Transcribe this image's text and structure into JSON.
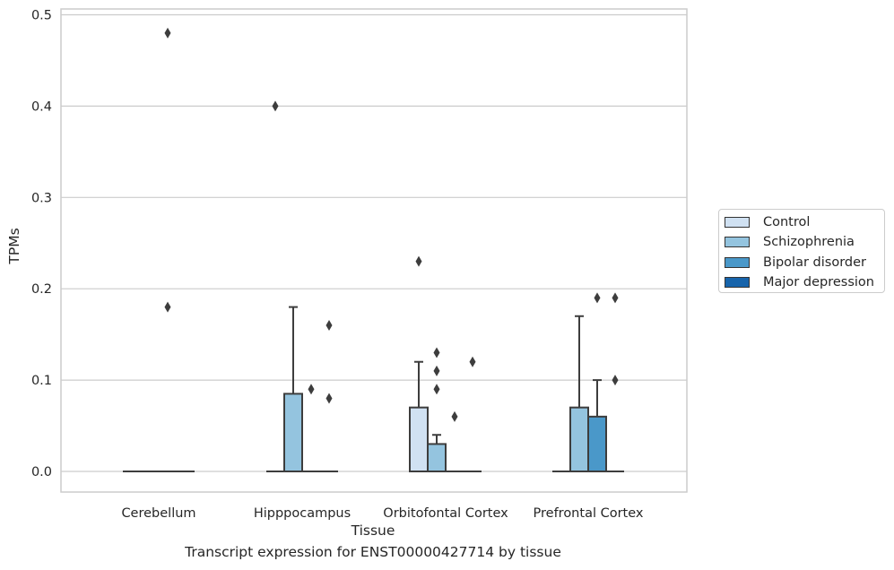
{
  "chart_data": {
    "type": "box",
    "title": "Transcript expression for ENST00000427714 by tissue",
    "xlabel": "Tissue",
    "ylabel": "TPMs",
    "ylim": [
      -0.023,
      0.505
    ],
    "yticks": [
      "0.0",
      "0.1",
      "0.2",
      "0.3",
      "0.4",
      "0.5"
    ],
    "categories": [
      "Cerebellum",
      "Hipppocampus",
      "Orbitofontal Cortex",
      "Prefrontal Cortex"
    ],
    "grid": true,
    "legend_position": "right",
    "series": [
      {
        "name": "Control",
        "color": "#d0e1f2",
        "boxes": [
          {
            "q1": 0,
            "median": 0,
            "q3": 0,
            "whisker_low": 0,
            "whisker_high": 0,
            "outliers": []
          },
          {
            "q1": 0,
            "median": 0,
            "q3": 0,
            "whisker_low": 0,
            "whisker_high": 0,
            "outliers": [
              0.4
            ]
          },
          {
            "q1": 0,
            "median": 0,
            "q3": 0.07,
            "whisker_low": 0,
            "whisker_high": 0.12,
            "outliers": [
              0.23
            ]
          },
          {
            "q1": 0,
            "median": 0,
            "q3": 0,
            "whisker_low": 0,
            "whisker_high": 0,
            "outliers": []
          }
        ]
      },
      {
        "name": "Schizophrenia",
        "color": "#94c4df",
        "boxes": [
          {
            "q1": 0,
            "median": 0,
            "q3": 0,
            "whisker_low": 0,
            "whisker_high": 0,
            "outliers": []
          },
          {
            "q1": 0,
            "median": 0,
            "q3": 0.085,
            "whisker_low": 0,
            "whisker_high": 0.18,
            "outliers": []
          },
          {
            "q1": 0,
            "median": 0,
            "q3": 0.03,
            "whisker_low": 0,
            "whisker_high": 0.04,
            "outliers": [
              0.09,
              0.11,
              0.13
            ]
          },
          {
            "q1": 0,
            "median": 0,
            "q3": 0.07,
            "whisker_low": 0,
            "whisker_high": 0.17,
            "outliers": []
          }
        ]
      },
      {
        "name": "Bipolar disorder",
        "color": "#4a98c9",
        "boxes": [
          {
            "q1": 0,
            "median": 0,
            "q3": 0,
            "whisker_low": 0,
            "whisker_high": 0,
            "outliers": [
              0.18,
              0.48
            ]
          },
          {
            "q1": 0,
            "median": 0,
            "q3": 0,
            "whisker_low": 0,
            "whisker_high": 0,
            "outliers": [
              0.09
            ]
          },
          {
            "q1": 0,
            "median": 0,
            "q3": 0,
            "whisker_low": 0,
            "whisker_high": 0,
            "outliers": [
              0.06
            ]
          },
          {
            "q1": 0,
            "median": 0,
            "q3": 0.06,
            "whisker_low": 0,
            "whisker_high": 0.1,
            "outliers": [
              0.19
            ]
          }
        ]
      },
      {
        "name": "Major depression",
        "color": "#1764ab",
        "boxes": [
          {
            "q1": 0,
            "median": 0,
            "q3": 0,
            "whisker_low": 0,
            "whisker_high": 0,
            "outliers": []
          },
          {
            "q1": 0,
            "median": 0,
            "q3": 0,
            "whisker_low": 0,
            "whisker_high": 0,
            "outliers": [
              0.08,
              0.16
            ]
          },
          {
            "q1": 0,
            "median": 0,
            "q3": 0,
            "whisker_low": 0,
            "whisker_high": 0,
            "outliers": [
              0.12
            ]
          },
          {
            "q1": 0,
            "median": 0,
            "q3": 0,
            "whisker_low": 0,
            "whisker_high": 0,
            "outliers": [
              0.1,
              0.19
            ]
          }
        ]
      }
    ]
  }
}
